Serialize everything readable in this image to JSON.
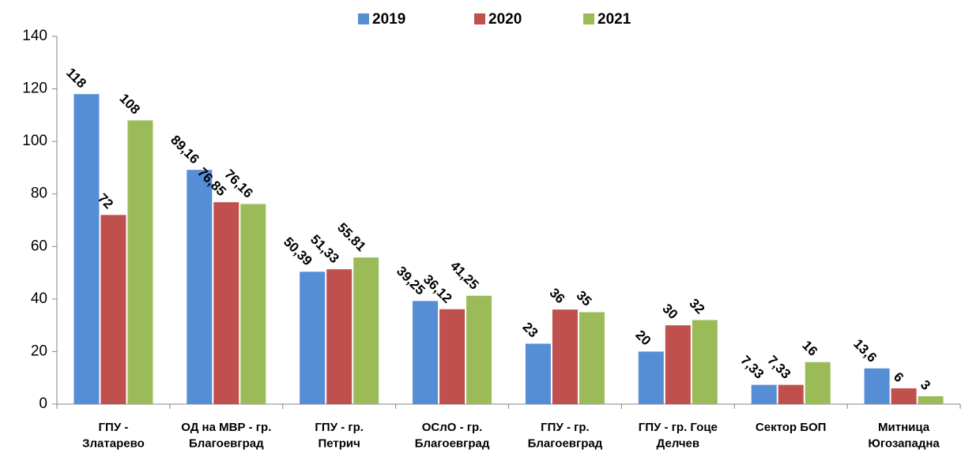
{
  "chart_data": {
    "type": "bar",
    "categories": [
      "ГПУ -\nЗлатарево",
      "ОД на МВР - гр.\nБлагоевград",
      "ГПУ - гр.\nПетрич",
      "ОСлО - гр.\nБлагоевград",
      "ГПУ - гр.\nБлагоевград",
      "ГПУ - гр. Гоце\nДелчев",
      "Сектор БОП",
      "Митница\nЮгозападна"
    ],
    "series": [
      {
        "name": "2019",
        "color": "#558ed5",
        "values": [
          118,
          89.16,
          50.39,
          39.25,
          23,
          20,
          7.33,
          13.6
        ],
        "value_labels": [
          "118",
          "89,16",
          "50,39",
          "39,25",
          "23",
          "20",
          "7,33",
          "13,6"
        ]
      },
      {
        "name": "2020",
        "color": "#c0504d",
        "values": [
          72,
          76.85,
          51.33,
          36.12,
          36,
          30,
          7.33,
          6
        ],
        "value_labels": [
          "72",
          "76,85",
          "51,33",
          "36,12",
          "36",
          "30",
          "7,33",
          "6"
        ]
      },
      {
        "name": "2021",
        "color": "#9bbb59",
        "values": [
          108,
          76.16,
          55.81,
          41.25,
          35,
          32,
          16,
          3
        ],
        "value_labels": [
          "108",
          "76,16",
          "55.81",
          "41,25",
          "35",
          "32",
          "16",
          "3"
        ]
      }
    ],
    "ylim": [
      0,
      140
    ],
    "yticks": [
      0,
      20,
      40,
      60,
      80,
      100,
      120,
      140
    ],
    "grid": false,
    "legend": "top"
  }
}
